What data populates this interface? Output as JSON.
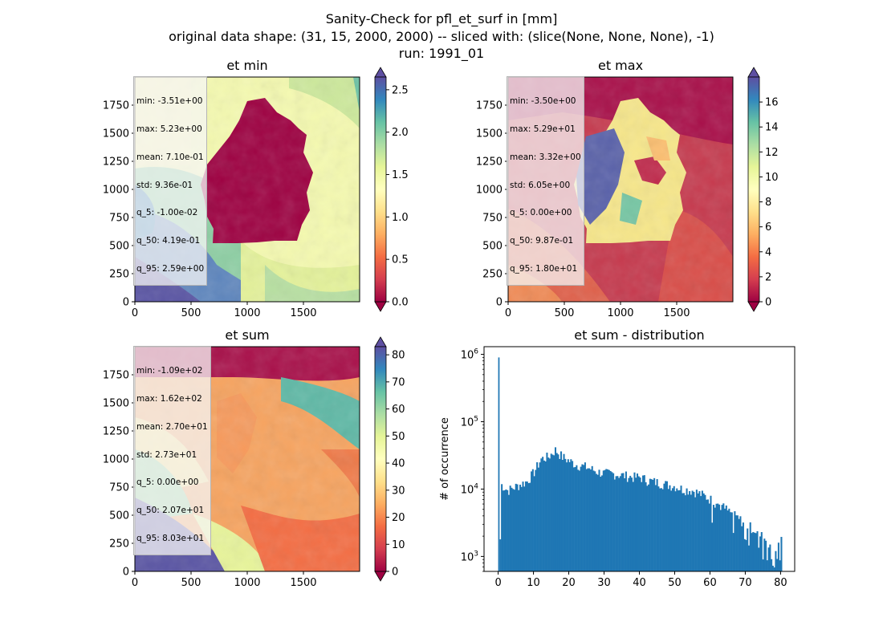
{
  "figure": {
    "title_lines": [
      "Sanity-Check for pfl_et_surf in [mm]",
      "original data shape: (31, 15, 2000, 2000) -- sliced with: (slice(None, None, None), -1)",
      "run: 1991_01"
    ]
  },
  "colors": {
    "spectral_stops": [
      "#9e0142",
      "#d53e4f",
      "#f46d43",
      "#fdae61",
      "#fee08b",
      "#ffffbf",
      "#e6f598",
      "#abdda4",
      "#66c2a5",
      "#3288bd",
      "#5e4fa2"
    ],
    "histogram_bar": "#1f77b4"
  },
  "chart_data": [
    {
      "type": "heatmap",
      "title": "et min",
      "xlim": [
        0,
        2000
      ],
      "ylim": [
        0,
        2000
      ],
      "xticks": [
        "0",
        "500",
        "1000",
        "1500"
      ],
      "yticks": [
        "0",
        "250",
        "500",
        "750",
        "1000",
        "1250",
        "1500",
        "1750"
      ],
      "colorbar": {
        "min": 0.0,
        "max": 2.65,
        "extend": "both",
        "ticks": [
          "0.0",
          "0.5",
          "1.0",
          "1.5",
          "2.0",
          "2.5"
        ]
      },
      "stats": [
        "min: -3.51e+00",
        "max: 5.23e+00",
        "mean: 7.10e-01",
        "std: 9.36e-01",
        "q_5: -1.00e-02",
        "q_50: 4.19e-01",
        "q_95: 2.59e+00"
      ]
    },
    {
      "type": "heatmap",
      "title": "et max",
      "xlim": [
        0,
        2000
      ],
      "ylim": [
        0,
        2000
      ],
      "xticks": [
        "0",
        "500",
        "1000",
        "1500"
      ],
      "yticks": [
        "0",
        "250",
        "500",
        "750",
        "1000",
        "1250",
        "1500",
        "1750"
      ],
      "colorbar": {
        "min": 0,
        "max": 18,
        "extend": "both",
        "ticks": [
          "0",
          "2",
          "4",
          "6",
          "8",
          "10",
          "12",
          "14",
          "16"
        ]
      },
      "stats": [
        "min: -3.50e+00",
        "max: 5.29e+01",
        "mean: 3.32e+00",
        "std: 6.05e+00",
        "q_5: 0.00e+00",
        "q_50: 9.87e-01",
        "q_95: 1.80e+01"
      ]
    },
    {
      "type": "heatmap",
      "title": "et sum",
      "xlim": [
        0,
        2000
      ],
      "ylim": [
        0,
        2000
      ],
      "xticks": [
        "0",
        "500",
        "1000",
        "1500"
      ],
      "yticks": [
        "0",
        "250",
        "500",
        "750",
        "1000",
        "1250",
        "1500",
        "1750"
      ],
      "colorbar": {
        "min": 0,
        "max": 83,
        "extend": "both",
        "ticks": [
          "0",
          "10",
          "20",
          "30",
          "40",
          "50",
          "60",
          "70",
          "80"
        ]
      },
      "stats": [
        "min: -1.09e+02",
        "max: 1.62e+02",
        "mean: 2.70e+01",
        "std: 2.73e+01",
        "q_5: 0.00e+00",
        "q_50: 2.07e+01",
        "q_95: 8.03e+01"
      ]
    },
    {
      "type": "bar",
      "title": "et sum - distribution",
      "ylabel": "# of occurrence",
      "yscale": "log",
      "xlim": [
        -4,
        84
      ],
      "ylim": [
        600,
        1300000
      ],
      "xticks": [
        "0",
        "10",
        "20",
        "30",
        "40",
        "50",
        "60",
        "70",
        "80"
      ],
      "yticks": [
        "10^3",
        "10^4",
        "10^5",
        "10^6"
      ],
      "bin_width": 0.4,
      "bins": [
        [
          0.0,
          900000
        ],
        [
          0.5,
          12000
        ],
        [
          2.5,
          9500
        ],
        [
          5,
          11000
        ],
        [
          8,
          13000
        ],
        [
          10,
          18000
        ],
        [
          12,
          28000
        ],
        [
          14,
          30000
        ],
        [
          16,
          38000
        ],
        [
          18,
          30000
        ],
        [
          20,
          26000
        ],
        [
          22,
          23000
        ],
        [
          25,
          21000
        ],
        [
          28,
          18000
        ],
        [
          30,
          17000
        ],
        [
          32,
          17000
        ],
        [
          35,
          16000
        ],
        [
          38,
          15000
        ],
        [
          40,
          15000
        ],
        [
          42,
          13500
        ],
        [
          45,
          12500
        ],
        [
          48,
          11500
        ],
        [
          50,
          11000
        ],
        [
          52,
          10000
        ],
        [
          55,
          9500
        ],
        [
          58,
          8000
        ],
        [
          60,
          7000
        ],
        [
          62,
          6000
        ],
        [
          64,
          5200
        ],
        [
          66,
          4300
        ],
        [
          68,
          3600
        ],
        [
          70,
          3000
        ],
        [
          72,
          2600
        ],
        [
          74,
          2100
        ],
        [
          76,
          1700
        ],
        [
          78,
          1300
        ],
        [
          80,
          1800
        ]
      ]
    }
  ]
}
